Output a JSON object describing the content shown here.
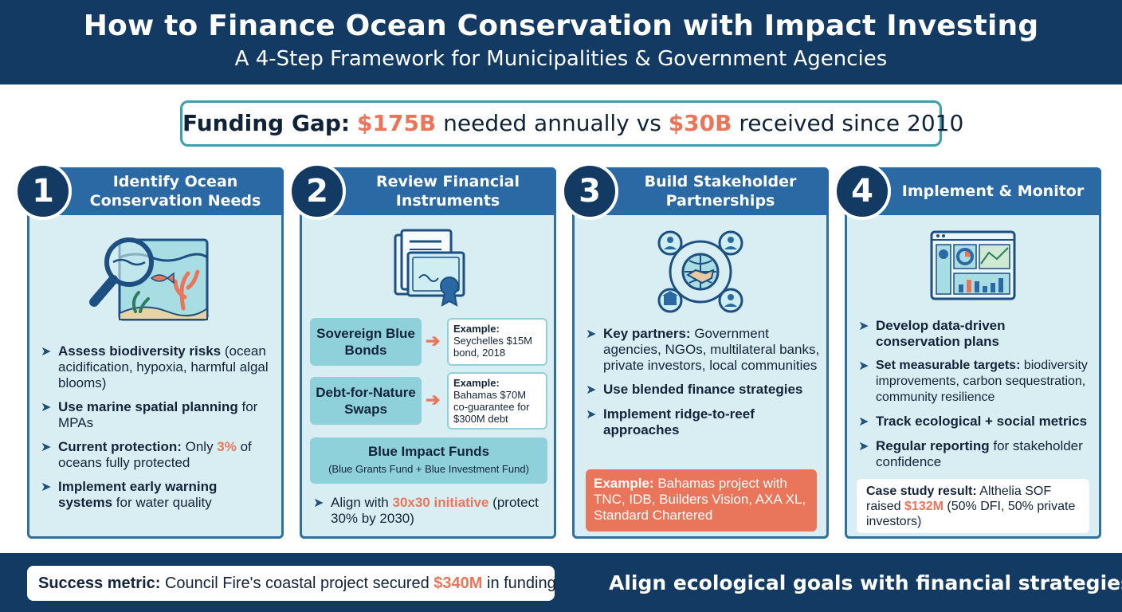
{
  "header": {
    "title": "How to Finance Ocean Conservation with Impact Investing",
    "subtitle": "A 4-Step Framework for Municipalities & Government Agencies"
  },
  "funding_gap": {
    "label": "Funding Gap:",
    "needed": "$175B",
    "needed_text": " needed annually vs ",
    "received": "$30B",
    "received_text": " received since 2010"
  },
  "steps": [
    {
      "number": "1",
      "title": "Identify Ocean Conservation Needs",
      "icon": "magnifier-ocean-icon",
      "bullets": [
        {
          "bold": "Assess biodiversity risks",
          "text": " (ocean acidification, hypoxia, harmful algal blooms)"
        },
        {
          "bold": "Use marine spatial planning",
          "text": " for MPAs"
        },
        {
          "bold": "Current protection:",
          "text": " Only ",
          "highlight": "3%",
          "text2": " of oceans fully protected"
        },
        {
          "bold": "Implement early warning systems",
          "text": " for water quality"
        }
      ]
    },
    {
      "number": "2",
      "title": "Review Financial Instruments",
      "icon": "certificate-documents-icon",
      "instruments": [
        {
          "label": "Sovereign Blue Bonds",
          "example_label": "Example:",
          "example": "Seychelles $15M bond, 2018"
        },
        {
          "label": "Debt-for-Nature Swaps",
          "example_label": "Example:",
          "example": "Bahamas $70M co-guarantee for $300M debt"
        }
      ],
      "fund": {
        "label": "Blue Impact Funds",
        "sub": "(Blue Grants Fund + Blue Investment Fund)"
      },
      "bullet": {
        "text": "Align with ",
        "highlight": "30x30 initiative",
        "text2": " (protect 30% by 2030)"
      }
    },
    {
      "number": "3",
      "title": "Build Stakeholder Partnerships",
      "icon": "network-handshake-icon",
      "bullets": [
        {
          "bold": "Key partners:",
          "text": " Government agencies, NGOs, multilateral banks, private investors, local communities"
        },
        {
          "bold": "Use blended finance strategies",
          "text": ""
        },
        {
          "bold": "Implement ridge-to-reef approaches",
          "text": ""
        }
      ],
      "example": {
        "label": "Example:",
        "text": " Bahamas project with TNC, IDB, Builders Vision, AXA XL, Standard Chartered"
      }
    },
    {
      "number": "4",
      "title": "Implement & Monitor",
      "icon": "dashboard-monitor-icon",
      "bullets": [
        {
          "bold": "Develop data-driven conservation plans",
          "text": ""
        },
        {
          "bold": "Set measurable targets:",
          "text": " biodiversity improvements, carbon sequestration, community resilience"
        },
        {
          "bold": "Track ecological + social metrics",
          "text": ""
        },
        {
          "bold": "Regular reporting",
          "text": " for stakeholder confidence"
        }
      ],
      "case": {
        "label": "Case study result:",
        "text": " Althelia SOF raised ",
        "highlight": "$132M",
        "text2": " (50% DFI, 50% private investors)"
      }
    }
  ],
  "footer": {
    "success_label": "Success metric:",
    "success_text": " Council Fire's coastal project secured ",
    "success_highlight": "$340M",
    "success_text2": " in funding",
    "tagline": "Align ecological goals with financial strategies"
  },
  "colors": {
    "navy": "#123a63",
    "header_blue": "#2a69a4",
    "card_bg": "#d8eef3",
    "teal": "#8fd1da",
    "accent_orange": "#e9765a"
  }
}
